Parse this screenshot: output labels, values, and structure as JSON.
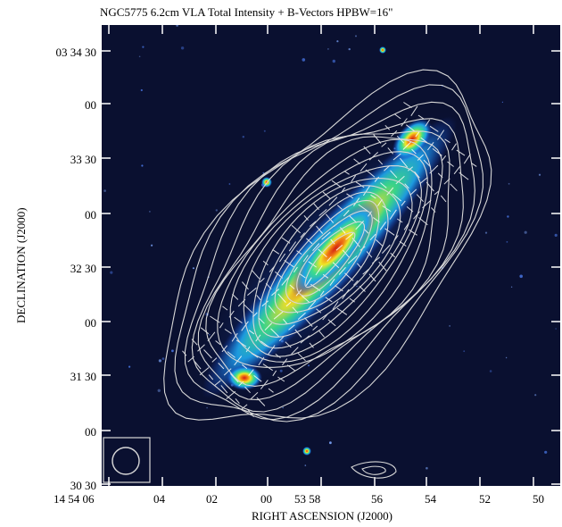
{
  "figure": {
    "title": "NGC5775   6.2cm   VLA   Total Intensity + B-Vectors   HPBW=16\"",
    "xlabel": "RIGHT ASCENSION (J2000)",
    "ylabel": "DECLINATION (J2000)",
    "y_ticks": [
      "03 34 30",
      "00",
      "33 30",
      "00",
      "32 30",
      "00",
      "31 30",
      "00",
      "30 30"
    ],
    "x_ticks": [
      "14 54 06",
      "04",
      "02",
      "00",
      "53 58",
      "56",
      "54",
      "52",
      "50"
    ],
    "colormap": [
      "#0a1030",
      "#1438c8",
      "#1ea0e6",
      "#3cdc8c",
      "#f0e628",
      "#f07814",
      "#d21e14"
    ],
    "contour_color": "#d8d8d8",
    "vector_color": "#ffffff"
  }
}
